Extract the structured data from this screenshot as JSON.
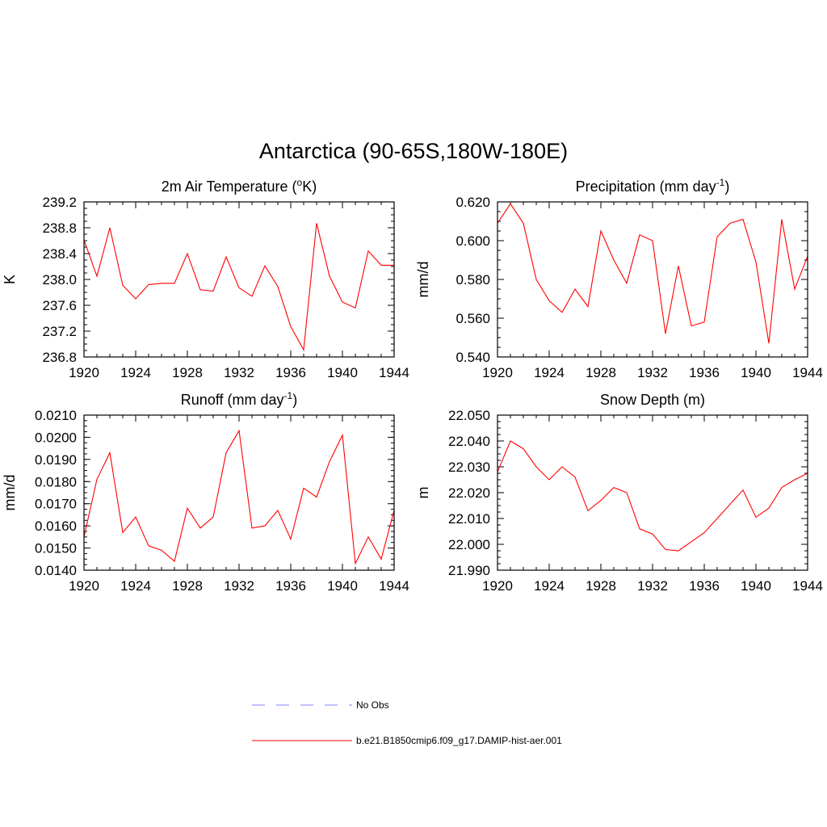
{
  "page": {
    "title": "Antarctica (90-65S,180W-180E)"
  },
  "legend": {
    "items": [
      {
        "label": "No Obs",
        "color": "#8080ff",
        "dashed": true
      },
      {
        "label": "b.e21.B1850cmip6.f09_g17.DAMIP-hist-aer.001",
        "color": "#ff0000",
        "dashed": false
      }
    ]
  },
  "chart_data": [
    {
      "type": "line",
      "title": "2m Air Temperature (°K)",
      "title_base": "2m Air Temperature (",
      "title_sup": "o",
      "title_tail": "K)",
      "ylabel": "K",
      "xlim": [
        1920,
        1944
      ],
      "ylim": [
        236.8,
        239.2
      ],
      "xticks": [
        1920,
        1924,
        1928,
        1932,
        1936,
        1940,
        1944
      ],
      "yticks": [
        236.8,
        237.2,
        237.6,
        238.0,
        238.4,
        238.8,
        239.2
      ],
      "ytick_labels": [
        "236.8",
        "237.2",
        "237.6",
        "238.0",
        "238.4",
        "238.8",
        "239.2"
      ],
      "series": [
        {
          "color": "#ff0000",
          "x": [
            1920,
            1921,
            1922,
            1923,
            1924,
            1925,
            1926,
            1927,
            1928,
            1929,
            1930,
            1931,
            1932,
            1933,
            1934,
            1935,
            1936,
            1937,
            1938,
            1939,
            1940,
            1941,
            1942,
            1943,
            1944
          ],
          "values": [
            238.61,
            238.05,
            238.8,
            237.91,
            237.7,
            237.92,
            237.94,
            237.94,
            238.4,
            237.84,
            237.82,
            238.35,
            237.87,
            237.74,
            238.21,
            237.89,
            237.27,
            236.91,
            238.87,
            238.05,
            237.65,
            237.56,
            238.44,
            238.22,
            238.22
          ]
        }
      ]
    },
    {
      "type": "line",
      "title": "Precipitation (mm day-1)",
      "title_base": "Precipitation (mm day",
      "title_sup": "-1",
      "title_tail": ")",
      "ylabel": "mm/d",
      "xlim": [
        1920,
        1944
      ],
      "ylim": [
        0.54,
        0.62
      ],
      "xticks": [
        1920,
        1924,
        1928,
        1932,
        1936,
        1940,
        1944
      ],
      "yticks": [
        0.54,
        0.56,
        0.58,
        0.6,
        0.62
      ],
      "ytick_labels": [
        "0.540",
        "0.560",
        "0.580",
        "0.600",
        "0.620"
      ],
      "series": [
        {
          "color": "#ff0000",
          "x": [
            1920,
            1921,
            1922,
            1923,
            1924,
            1925,
            1926,
            1927,
            1928,
            1929,
            1930,
            1931,
            1932,
            1933,
            1934,
            1935,
            1936,
            1937,
            1938,
            1939,
            1940,
            1941,
            1942,
            1943,
            1944
          ],
          "values": [
            0.609,
            0.619,
            0.609,
            0.58,
            0.569,
            0.563,
            0.575,
            0.566,
            0.605,
            0.59,
            0.578,
            0.603,
            0.6,
            0.552,
            0.587,
            0.556,
            0.558,
            0.602,
            0.609,
            0.611,
            0.589,
            0.547,
            0.611,
            0.575,
            0.592
          ]
        }
      ]
    },
    {
      "type": "line",
      "title": "Runoff (mm day-1)",
      "title_base": "Runoff (mm day",
      "title_sup": "-1",
      "title_tail": ")",
      "ylabel": "mm/d",
      "xlim": [
        1920,
        1944
      ],
      "ylim": [
        0.014,
        0.021
      ],
      "xticks": [
        1920,
        1924,
        1928,
        1932,
        1936,
        1940,
        1944
      ],
      "yticks": [
        0.014,
        0.015,
        0.016,
        0.017,
        0.018,
        0.019,
        0.02,
        0.021
      ],
      "ytick_labels": [
        "0.0140",
        "0.0150",
        "0.0160",
        "0.0170",
        "0.0180",
        "0.0190",
        "0.0200",
        "0.0210"
      ],
      "series": [
        {
          "color": "#ff0000",
          "x": [
            1920,
            1921,
            1922,
            1923,
            1924,
            1925,
            1926,
            1927,
            1928,
            1929,
            1930,
            1931,
            1932,
            1933,
            1934,
            1935,
            1936,
            1937,
            1938,
            1939,
            1940,
            1941,
            1942,
            1943,
            1944
          ],
          "values": [
            0.0155,
            0.0181,
            0.0193,
            0.0157,
            0.0164,
            0.0151,
            0.0149,
            0.0144,
            0.0168,
            0.0159,
            0.0164,
            0.0193,
            0.0203,
            0.0159,
            0.016,
            0.0167,
            0.0154,
            0.0177,
            0.0173,
            0.0189,
            0.0201,
            0.0143,
            0.0155,
            0.0145,
            0.0167
          ]
        }
      ]
    },
    {
      "type": "line",
      "title": "Snow Depth (m)",
      "title_base": "Snow Depth (m)",
      "title_sup": "",
      "title_tail": "",
      "ylabel": "m",
      "xlim": [
        1920,
        1944
      ],
      "ylim": [
        21.99,
        22.05
      ],
      "xticks": [
        1920,
        1924,
        1928,
        1932,
        1936,
        1940,
        1944
      ],
      "yticks": [
        21.99,
        22.0,
        22.01,
        22.02,
        22.03,
        22.04,
        22.05
      ],
      "ytick_labels": [
        "21.990",
        "22.000",
        "22.010",
        "22.020",
        "22.030",
        "22.040",
        "22.050"
      ],
      "series": [
        {
          "color": "#ff0000",
          "x": [
            1920,
            1921,
            1922,
            1923,
            1924,
            1925,
            1926,
            1927,
            1928,
            1929,
            1930,
            1931,
            1932,
            1933,
            1934,
            1935,
            1936,
            1937,
            1938,
            1939,
            1940,
            1941,
            1942,
            1943,
            1944
          ],
          "values": [
            22.028,
            22.04,
            22.037,
            22.03,
            22.025,
            22.03,
            22.026,
            22.013,
            22.017,
            22.022,
            22.02,
            22.006,
            22.004,
            21.998,
            21.9975,
            22.001,
            22.0045,
            22.01,
            22.0155,
            22.021,
            22.0105,
            22.014,
            22.022,
            22.025,
            22.0275
          ]
        }
      ]
    }
  ]
}
